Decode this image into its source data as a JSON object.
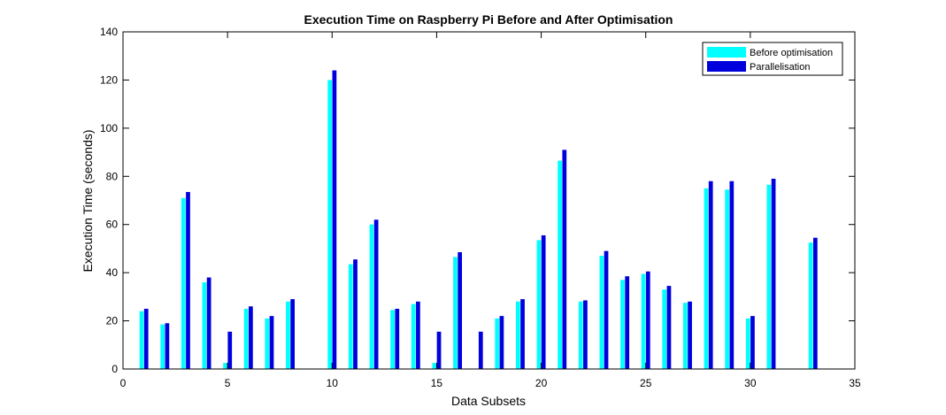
{
  "chart_data": {
    "type": "bar",
    "title": "Execution Time on Raspberry Pi Before and After Optimisation",
    "xlabel": "Data Subsets",
    "ylabel": "Execution Time (seconds)",
    "xlim": [
      0,
      35
    ],
    "ylim": [
      0,
      140
    ],
    "xticks": [
      0,
      5,
      10,
      15,
      20,
      25,
      30,
      35
    ],
    "yticks": [
      0,
      20,
      40,
      60,
      80,
      100,
      120,
      140
    ],
    "grid": false,
    "legend_position": "top-right",
    "series": [
      {
        "name": "Before optimisation",
        "color": "#00ffff",
        "x": [
          1,
          2,
          3,
          4,
          5,
          6,
          7,
          8,
          10,
          11,
          12,
          13,
          14,
          15,
          16,
          18,
          19,
          20,
          21,
          22,
          23,
          24,
          25,
          26,
          27,
          28,
          29,
          30,
          31,
          33
        ],
        "values": [
          24,
          18.5,
          71,
          36,
          2.5,
          25,
          21,
          28,
          120,
          43.5,
          60,
          24.5,
          27,
          2.5,
          46.5,
          21,
          28,
          53.5,
          86.5,
          28,
          47,
          37,
          39.5,
          33,
          27.5,
          75,
          74.5,
          21,
          76.5,
          52.5
        ]
      },
      {
        "name": "Parallelisation",
        "color": "#0000dd",
        "x": [
          1,
          2,
          3,
          4,
          5,
          6,
          7,
          8,
          10,
          11,
          12,
          13,
          14,
          15,
          16,
          17,
          18,
          19,
          20,
          21,
          22,
          23,
          24,
          25,
          26,
          27,
          28,
          29,
          30,
          31,
          33
        ],
        "values": [
          25,
          19,
          73.5,
          38,
          15.5,
          26,
          22,
          29,
          124,
          45.5,
          62,
          25,
          28,
          15.5,
          48.5,
          15.5,
          22,
          29,
          55.5,
          91,
          28.5,
          49,
          38.5,
          40.5,
          34.5,
          28,
          78,
          78,
          22,
          79,
          54.5
        ]
      }
    ]
  }
}
